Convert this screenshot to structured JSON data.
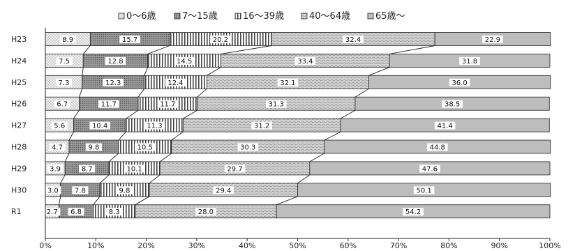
{
  "chart_data": {
    "type": "bar",
    "orientation": "horizontal",
    "stacked": true,
    "normalized": true,
    "categories": [
      "H23",
      "H24",
      "H25",
      "H26",
      "H27",
      "H28",
      "H29",
      "H30",
      "R1"
    ],
    "series": [
      {
        "name": "0～6歳",
        "values": [
          8.9,
          7.5,
          7.3,
          6.7,
          5.6,
          4.7,
          3.9,
          3.0,
          2.7
        ]
      },
      {
        "name": "7～15歳",
        "values": [
          15.7,
          12.8,
          12.3,
          11.7,
          10.4,
          9.8,
          8.7,
          7.8,
          6.8
        ]
      },
      {
        "name": "16～39歳",
        "values": [
          20.2,
          14.5,
          12.4,
          11.7,
          11.3,
          10.5,
          10.1,
          9.8,
          8.3
        ]
      },
      {
        "name": "40～64歳",
        "values": [
          32.4,
          33.4,
          32.1,
          31.3,
          31.2,
          30.3,
          29.7,
          29.4,
          28.0
        ]
      },
      {
        "name": "65歳～",
        "values": [
          22.9,
          31.8,
          36.0,
          38.5,
          41.4,
          44.8,
          47.6,
          50.1,
          54.2
        ]
      }
    ],
    "xlim": [
      0,
      100
    ],
    "xticks": [
      "0%",
      "10%",
      "20%",
      "30%",
      "40%",
      "50%",
      "60%",
      "70%",
      "80%",
      "90%",
      "100%"
    ],
    "legend_position": "top",
    "grid": false,
    "series_connector_lines": true
  },
  "colors": {
    "series_fill": [
      "#e4e4e4",
      "#8a8a8a",
      "#ffffff",
      "#c4c4c4",
      "#bdbdbd"
    ],
    "stroke": "#222222"
  }
}
